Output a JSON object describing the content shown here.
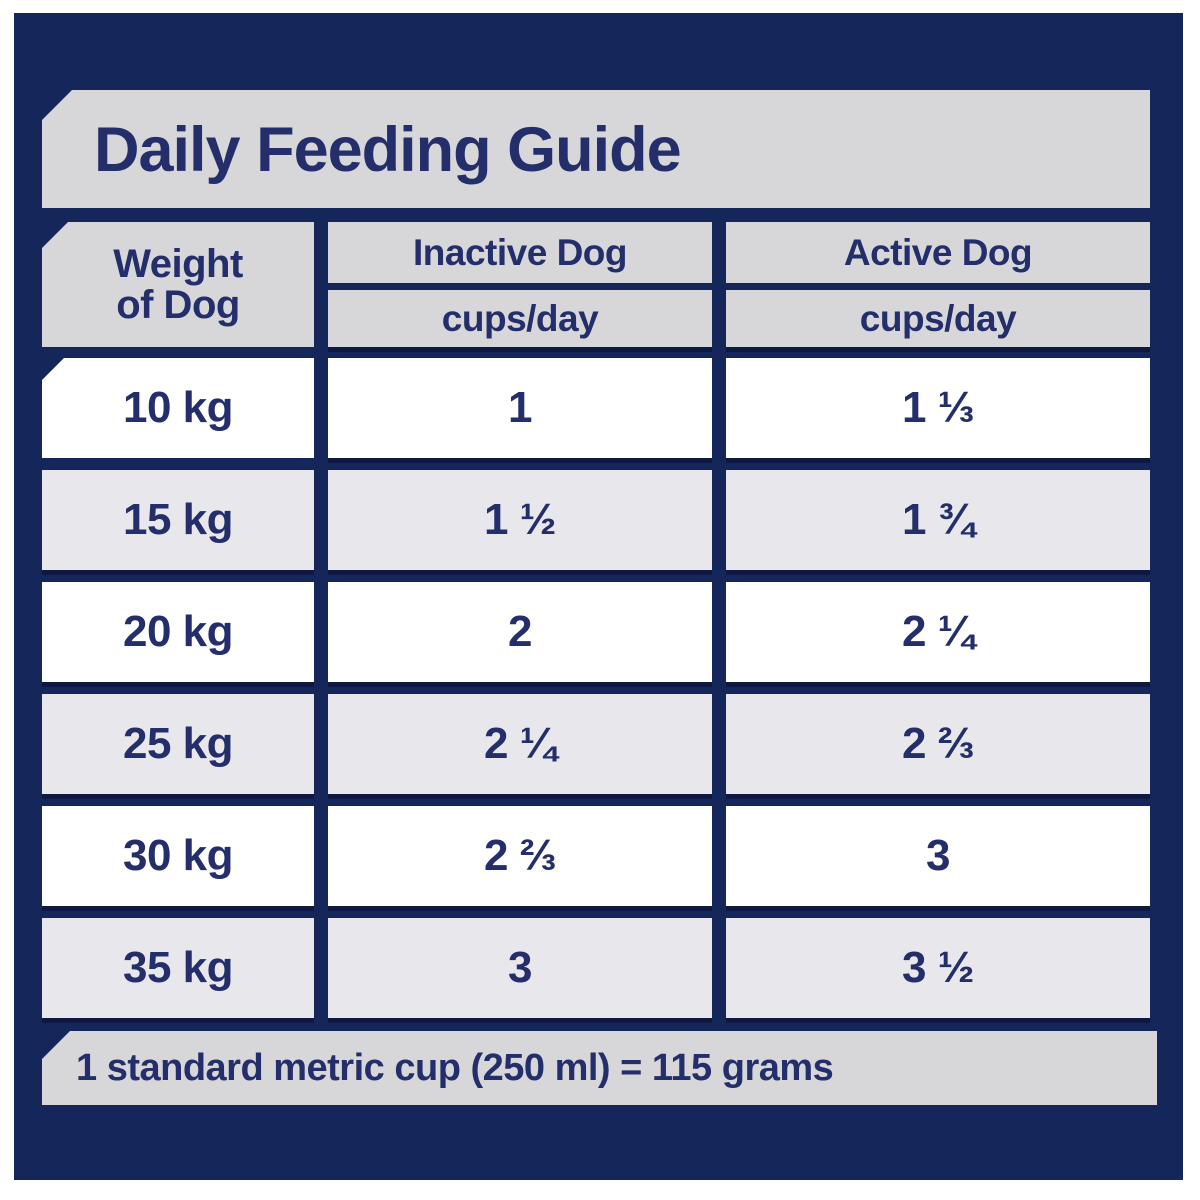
{
  "colors": {
    "panel_navy": "#15265B",
    "text_navy": "#232E6A",
    "banner_gray": "#D7D7D9",
    "row_gray": "#E8E8EC",
    "row_white": "#FFFFFF"
  },
  "title": "Daily Feeding Guide",
  "table": {
    "weight_header": {
      "line1": "Weight",
      "line2": "of Dog"
    },
    "columns": [
      {
        "label": "Inactive Dog",
        "sub": "cups/day"
      },
      {
        "label": "Active Dog",
        "sub": "cups/day"
      }
    ],
    "rows": [
      {
        "weight": "10 kg",
        "inactive": "1",
        "active": "1 ⅓"
      },
      {
        "weight": "15 kg",
        "inactive": "1 ½",
        "active": "1 ¾"
      },
      {
        "weight": "20 kg",
        "inactive": "2",
        "active": "2 ¼"
      },
      {
        "weight": "25 kg",
        "inactive": "2 ¼",
        "active": "2 ⅔"
      },
      {
        "weight": "30 kg",
        "inactive": "2 ⅔",
        "active": "3"
      },
      {
        "weight": "35 kg",
        "inactive": "3",
        "active": "3 ½"
      }
    ]
  },
  "footnote": "1 standard metric cup (250 ml) = 115 grams"
}
